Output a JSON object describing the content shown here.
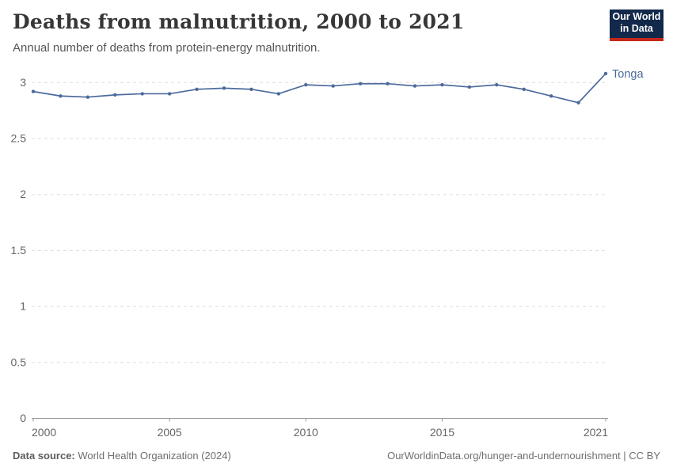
{
  "header": {
    "title": "Deaths from malnutrition, 2000 to 2021",
    "subtitle": "Annual number of deaths from protein-energy malnutrition.",
    "logo": {
      "line1": "Our World",
      "line2": "in Data",
      "bg_color": "#12294b",
      "accent_color": "#c5281c"
    }
  },
  "chart_data": {
    "type": "line",
    "title": "Deaths from malnutrition, 2000 to 2021",
    "xlabel": "",
    "ylabel": "",
    "xlim": [
      2000,
      2021
    ],
    "ylim": [
      0,
      3
    ],
    "x_ticks": [
      2000,
      2005,
      2010,
      2015,
      2021
    ],
    "y_ticks": [
      0,
      0.5,
      1,
      1.5,
      2,
      2.5,
      3
    ],
    "grid": "horizontal-dashed",
    "legend_position": "end-of-line",
    "colors": {
      "grid": "#dddddd",
      "axis": "#999999",
      "tick_text": "#666666"
    },
    "series": [
      {
        "name": "Tonga",
        "color": "#4c6a9c",
        "x": [
          2000,
          2001,
          2002,
          2003,
          2004,
          2005,
          2006,
          2007,
          2008,
          2009,
          2010,
          2011,
          2012,
          2013,
          2014,
          2015,
          2016,
          2017,
          2018,
          2019,
          2020,
          2021
        ],
        "values": [
          2.92,
          2.88,
          2.87,
          2.89,
          2.9,
          2.9,
          2.94,
          2.95,
          2.94,
          2.9,
          2.98,
          2.97,
          2.99,
          2.99,
          2.97,
          2.98,
          2.96,
          2.98,
          2.94,
          2.88,
          2.82,
          3.08
        ]
      }
    ]
  },
  "footer": {
    "source_label": "Data source:",
    "source_value": " World Health Organization (2024)",
    "attribution": "OurWorldinData.org/hunger-and-undernourishment | CC BY"
  }
}
